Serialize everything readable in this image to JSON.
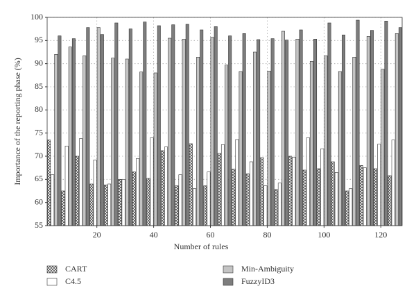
{
  "chart_data": {
    "type": "bar",
    "xlabel": "Number of rules",
    "ylabel": "Importance of the reporting phase (%)",
    "x": [
      5,
      10,
      15,
      20,
      25,
      30,
      35,
      40,
      45,
      50,
      55,
      60,
      65,
      70,
      75,
      80,
      85,
      90,
      95,
      100,
      105,
      110,
      115,
      120,
      125
    ],
    "series": [
      {
        "name": "CART",
        "color": "#ffffff",
        "pattern": "crosshatch",
        "values": [
          73.5,
          62.5,
          70,
          64,
          63.8,
          65,
          66.6,
          65.2,
          71.2,
          63.6,
          72.7,
          63.6,
          70.6,
          67.2,
          66.2,
          69.7,
          62.8,
          70,
          67,
          67.3,
          68.8,
          62.5,
          68,
          67.3,
          65.8
        ]
      },
      {
        "name": "C4.5",
        "color": "#ffffff",
        "values": [
          66,
          72.2,
          73.8,
          69.2,
          64,
          65,
          69.5,
          74,
          72,
          66,
          63,
          66.6,
          72.5,
          73.6,
          68.8,
          63.6,
          64.2,
          69.8,
          74,
          71.6,
          66.5,
          63,
          67.5,
          72.6,
          73.5
        ]
      },
      {
        "name": "Min-Ambiguity",
        "color": "#c4c4c4",
        "values": [
          92,
          93.6,
          91.7,
          97.8,
          91.2,
          91,
          88.2,
          88,
          95.5,
          95.3,
          91.4,
          95.7,
          89.7,
          88.3,
          92.5,
          88.4,
          97,
          95.3,
          90.5,
          91.7,
          88.3,
          91.4,
          95.9,
          88.8,
          96.5
        ]
      },
      {
        "name": "FuzzyID3",
        "color": "#7d7d7d",
        "values": [
          96,
          95.4,
          97.8,
          96.3,
          98.8,
          97.5,
          99,
          98.2,
          98.4,
          98.5,
          97.3,
          98,
          96,
          96.5,
          95.2,
          95.4,
          95.1,
          97.3,
          95.3,
          98.8,
          96.2,
          99.4,
          97.2,
          99.2,
          97.8
        ]
      }
    ],
    "xlim": [
      2.5,
      127.5
    ],
    "xticks": [
      20,
      40,
      60,
      80,
      100,
      120
    ],
    "ylim": [
      55,
      100
    ],
    "yticks": [
      55,
      60,
      65,
      70,
      75,
      80,
      85,
      90,
      95,
      100
    ],
    "grid": true,
    "legend": "bottom"
  }
}
